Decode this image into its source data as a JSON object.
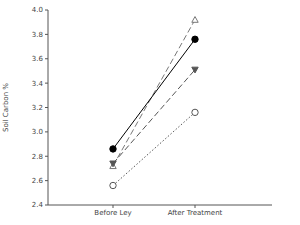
{
  "chart_data": {
    "type": "line",
    "y_label": "Soil Carbon %",
    "categories": [
      "Before Ley",
      "After Treatment"
    ],
    "ylim": [
      2.4,
      4.0
    ],
    "yticks": [
      2.4,
      2.6,
      2.8,
      {
        "value": 3,
        "label": "3.0"
      },
      3.2,
      3.4,
      3.6,
      3.8,
      {
        "value": 4,
        "label": "4.0"
      }
    ],
    "series": [
      {
        "color": "#777777",
        "marker": "triangle-open",
        "line_style": "dashed",
        "values": [
          2.72,
          3.92
        ]
      },
      {
        "color": "#000000",
        "marker": "circle",
        "line_style": "solid",
        "values": [
          2.86,
          3.76
        ]
      },
      {
        "color": "#555555",
        "marker": "triangle-down",
        "line_style": "dashed",
        "values": [
          2.74,
          3.51
        ]
      },
      {
        "color": "#555555",
        "marker": "circle-open",
        "line_style": "dotted",
        "values": [
          2.56,
          3.16
        ]
      }
    ]
  }
}
